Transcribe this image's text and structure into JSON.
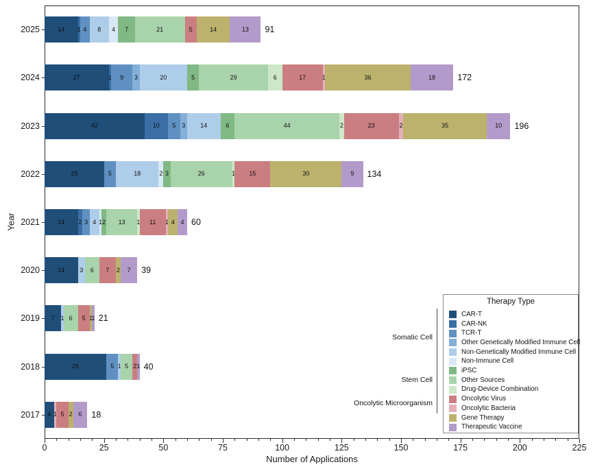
{
  "chart_data": {
    "type": "bar",
    "orientation": "horizontal",
    "xlabel": "Number of Applications",
    "ylabel": "Year",
    "xlim": [
      0,
      225
    ],
    "xticks": [
      0,
      25,
      50,
      75,
      100,
      125,
      150,
      175,
      200,
      225
    ],
    "legend_title": "Therapy Type",
    "legend_items": [
      {
        "name": "CAR-T",
        "color": "#1f4e79"
      },
      {
        "name": "CAR-NK",
        "color": "#3a6ea5"
      },
      {
        "name": "TCR-T",
        "color": "#5f90c1"
      },
      {
        "name": "Other Genetically Modified Immune Cell",
        "color": "#84afd8"
      },
      {
        "name": "Non-Genetically Modified Immune Cell",
        "color": "#aecde9"
      },
      {
        "name": "Non-Immune Cell",
        "color": "#d9e8f6"
      },
      {
        "name": "iPSC",
        "color": "#80b983"
      },
      {
        "name": "Other Sources",
        "color": "#a9d3ab"
      },
      {
        "name": "Drug-Device Combination",
        "color": "#cde8c8"
      },
      {
        "name": "Oncolytic Virus",
        "color": "#cb7e81"
      },
      {
        "name": "Oncolytic Bacteria",
        "color": "#e3b0b8"
      },
      {
        "name": "Gene Therapy",
        "color": "#bcb26d"
      },
      {
        "name": "Therapeutic Vaccine",
        "color": "#b29bca"
      }
    ],
    "groups": [
      {
        "label": "Somatic Cell",
        "first_item": 0,
        "last_item": 5
      },
      {
        "label": "Stem Cell",
        "first_item": 6,
        "last_item": 8
      },
      {
        "label": "Oncolytic Microorganism",
        "first_item": 9,
        "last_item": 10
      }
    ],
    "bars": [
      {
        "year": "2025",
        "total": 91,
        "segments": [
          {
            "category": "CAR-T",
            "value": 14
          },
          {
            "category": "CAR-NK",
            "value": 1
          },
          {
            "category": "TCR-T",
            "value": 4
          },
          {
            "category": "Non-Genetically Modified Immune Cell",
            "value": 8
          },
          {
            "category": "Non-Immune Cell",
            "value": 4
          },
          {
            "category": "iPSC",
            "value": 7
          },
          {
            "category": "Other Sources",
            "value": 21
          },
          {
            "category": "Oncolytic Virus",
            "value": 5
          },
          {
            "category": "Gene Therapy",
            "value": 14
          },
          {
            "category": "Therapeutic Vaccine",
            "value": 13
          }
        ]
      },
      {
        "year": "2024",
        "total": 172,
        "segments": [
          {
            "category": "CAR-T",
            "value": 27
          },
          {
            "category": "CAR-NK",
            "value": 1
          },
          {
            "category": "TCR-T",
            "value": 9
          },
          {
            "category": "Other Genetically Modified Immune Cell",
            "value": 3
          },
          {
            "category": "Non-Genetically Modified Immune Cell",
            "value": 20
          },
          {
            "category": "iPSC",
            "value": 5
          },
          {
            "category": "Other Sources",
            "value": 29
          },
          {
            "category": "Drug-Device Combination",
            "value": 6
          },
          {
            "category": "Oncolytic Virus",
            "value": 17
          },
          {
            "category": "Oncolytic Bacteria",
            "value": 1
          },
          {
            "category": "Gene Therapy",
            "value": 36
          },
          {
            "category": "Therapeutic Vaccine",
            "value": 18
          }
        ]
      },
      {
        "year": "2023",
        "total": 196,
        "segments": [
          {
            "category": "CAR-T",
            "value": 42
          },
          {
            "category": "CAR-NK",
            "value": 10
          },
          {
            "category": "TCR-T",
            "value": 5
          },
          {
            "category": "Other Genetically Modified Immune Cell",
            "value": 3
          },
          {
            "category": "Non-Genetically Modified Immune Cell",
            "value": 14
          },
          {
            "category": "iPSC",
            "value": 6
          },
          {
            "category": "Other Sources",
            "value": 44
          },
          {
            "category": "Drug-Device Combination",
            "value": 2
          },
          {
            "category": "Oncolytic Virus",
            "value": 23
          },
          {
            "category": "Oncolytic Bacteria",
            "value": 2
          },
          {
            "category": "Gene Therapy",
            "value": 35
          },
          {
            "category": "Therapeutic Vaccine",
            "value": 10
          }
        ]
      },
      {
        "year": "2022",
        "total": 134,
        "segments": [
          {
            "category": "CAR-T",
            "value": 25
          },
          {
            "category": "TCR-T",
            "value": 5
          },
          {
            "category": "Non-Genetically Modified Immune Cell",
            "value": 18
          },
          {
            "category": "Non-Immune Cell",
            "value": 2
          },
          {
            "category": "iPSC",
            "value": 3
          },
          {
            "category": "Other Sources",
            "value": 26
          },
          {
            "category": "Drug-Device Combination",
            "value": 1
          },
          {
            "category": "Oncolytic Virus",
            "value": 15
          },
          {
            "category": "Gene Therapy",
            "value": 30
          },
          {
            "category": "Therapeutic Vaccine",
            "value": 9
          }
        ]
      },
      {
        "year": "2021",
        "total": 60,
        "segments": [
          {
            "category": "CAR-T",
            "value": 14
          },
          {
            "category": "CAR-NK",
            "value": 2
          },
          {
            "category": "TCR-T",
            "value": 3
          },
          {
            "category": "Non-Genetically Modified Immune Cell",
            "value": 4
          },
          {
            "category": "Non-Immune Cell",
            "value": 1
          },
          {
            "category": "iPSC",
            "value": 2
          },
          {
            "category": "Other Sources",
            "value": 13
          },
          {
            "category": "Drug-Device Combination",
            "value": 1
          },
          {
            "category": "Oncolytic Virus",
            "value": 11
          },
          {
            "category": "Oncolytic Bacteria",
            "value": 1
          },
          {
            "category": "Gene Therapy",
            "value": 4
          },
          {
            "category": "Therapeutic Vaccine",
            "value": 4
          }
        ]
      },
      {
        "year": "2020",
        "total": 39,
        "segments": [
          {
            "category": "CAR-T",
            "value": 14
          },
          {
            "category": "Non-Genetically Modified Immune Cell",
            "value": 3
          },
          {
            "category": "Other Sources",
            "value": 6
          },
          {
            "category": "Oncolytic Virus",
            "value": 7
          },
          {
            "category": "Gene Therapy",
            "value": 2
          },
          {
            "category": "Therapeutic Vaccine",
            "value": 7
          }
        ]
      },
      {
        "year": "2019",
        "total": 21,
        "segments": [
          {
            "category": "CAR-T",
            "value": 7
          },
          {
            "category": "Non-Genetically Modified Immune Cell",
            "value": 1
          },
          {
            "category": "Other Sources",
            "value": 6
          },
          {
            "category": "Oncolytic Virus",
            "value": 5
          },
          {
            "category": "Gene Therapy",
            "value": 1
          },
          {
            "category": "Therapeutic Vaccine",
            "value": 1
          }
        ]
      },
      {
        "year": "2018",
        "total": 40,
        "segments": [
          {
            "category": "CAR-T",
            "value": 26
          },
          {
            "category": "TCR-T",
            "value": 5
          },
          {
            "category": "Non-Genetically Modified Immune Cell",
            "value": 1
          },
          {
            "category": "Other Sources",
            "value": 5
          },
          {
            "category": "Oncolytic Virus",
            "value": 2
          },
          {
            "category": "Therapeutic Vaccine",
            "value": 1
          }
        ]
      },
      {
        "year": "2017",
        "total": 18,
        "segments": [
          {
            "category": "CAR-T",
            "value": 4
          },
          {
            "category": "Oncolytic Bacteria",
            "value": 1
          },
          {
            "category": "Oncolytic Virus",
            "value": 5
          },
          {
            "category": "Gene Therapy",
            "value": 2
          },
          {
            "category": "Therapeutic Vaccine",
            "value": 6
          }
        ]
      }
    ]
  }
}
